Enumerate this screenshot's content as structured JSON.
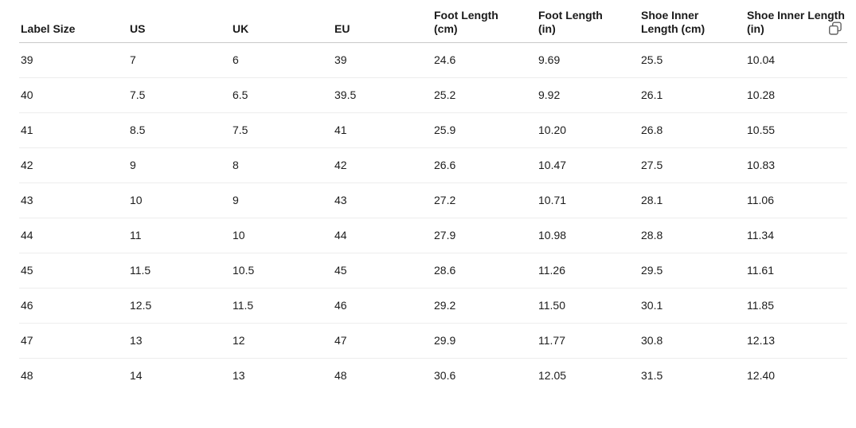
{
  "table": {
    "columns": [
      {
        "id": "label-size",
        "label": "Label Size",
        "lines": [
          "Label Size"
        ]
      },
      {
        "id": "us",
        "label": "US",
        "lines": [
          "US"
        ]
      },
      {
        "id": "uk",
        "label": "UK",
        "lines": [
          "UK"
        ]
      },
      {
        "id": "eu",
        "label": "EU",
        "lines": [
          "EU"
        ]
      },
      {
        "id": "foot-length-cm",
        "label": "Foot Length (cm)",
        "lines": [
          "Foot Length",
          "(cm)"
        ]
      },
      {
        "id": "foot-length-in",
        "label": "Foot Length (in)",
        "lines": [
          "Foot Length",
          "(in)"
        ]
      },
      {
        "id": "shoe-inner-length-cm",
        "label": "Shoe Inner Length (cm)",
        "lines": [
          "Shoe Inner",
          "Length (cm)"
        ]
      },
      {
        "id": "shoe-inner-length-in",
        "label": "Shoe Inner Length (in)",
        "lines": [
          "Shoe Inner Length",
          "(in)"
        ]
      }
    ],
    "rows": [
      [
        "39",
        "7",
        "6",
        "39",
        "24.6",
        "9.69",
        "25.5",
        "10.04"
      ],
      [
        "40",
        "7.5",
        "6.5",
        "39.5",
        "25.2",
        "9.92",
        "26.1",
        "10.28"
      ],
      [
        "41",
        "8.5",
        "7.5",
        "41",
        "25.9",
        "10.20",
        "26.8",
        "10.55"
      ],
      [
        "42",
        "9",
        "8",
        "42",
        "26.6",
        "10.47",
        "27.5",
        "10.83"
      ],
      [
        "43",
        "10",
        "9",
        "43",
        "27.2",
        "10.71",
        "28.1",
        "11.06"
      ],
      [
        "44",
        "11",
        "10",
        "44",
        "27.9",
        "10.98",
        "28.8",
        "11.34"
      ],
      [
        "45",
        "11.5",
        "10.5",
        "45",
        "28.6",
        "11.26",
        "29.5",
        "11.61"
      ],
      [
        "46",
        "12.5",
        "11.5",
        "46",
        "29.2",
        "11.50",
        "30.1",
        "11.85"
      ],
      [
        "47",
        "13",
        "12",
        "47",
        "29.9",
        "11.77",
        "30.8",
        "12.13"
      ],
      [
        "48",
        "14",
        "13",
        "48",
        "30.6",
        "12.05",
        "31.5",
        "12.40"
      ]
    ]
  },
  "icons": {
    "copy": "copy-icon"
  },
  "colors": {
    "background": "#ffffff",
    "header_text": "#1a1a1a",
    "body_text": "#1c1c1c",
    "header_border": "#c9c9c9",
    "row_border": "#ededed",
    "copy_icon": "#616161"
  }
}
